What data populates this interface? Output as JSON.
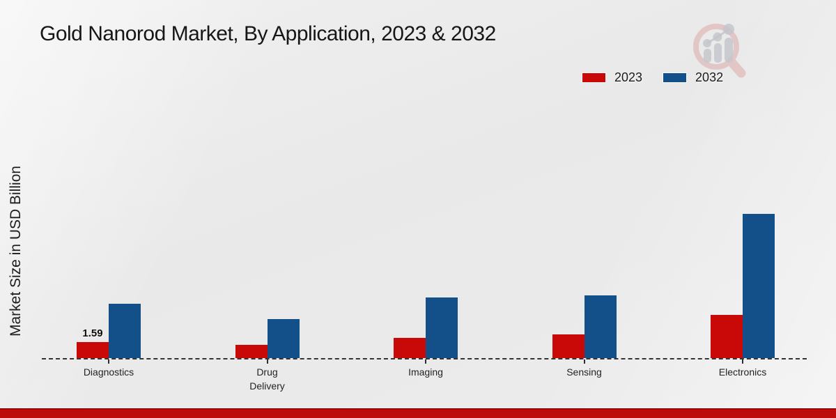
{
  "title": "Gold Nanorod Market, By Application, 2023 & 2032",
  "ylabel": "Market Size in USD Billion",
  "legend": {
    "items": [
      {
        "label": "2023",
        "color": "#c90808"
      },
      {
        "label": "2032",
        "color": "#134f88"
      }
    ]
  },
  "chart_data": {
    "type": "bar",
    "title": "Gold Nanorod Market, By Application, 2023 & 2032",
    "ylabel": "Market Size in USD Billion",
    "categories": [
      "Diagnostics",
      "Drug Delivery",
      "Imaging",
      "Sensing",
      "Electronics"
    ],
    "series": [
      {
        "name": "2023",
        "color": "#c90808",
        "values": [
          1.59,
          1.3,
          2.0,
          2.3,
          4.2
        ]
      },
      {
        "name": "2032",
        "color": "#134f88",
        "values": [
          5.3,
          3.8,
          5.9,
          6.1,
          14.1
        ]
      }
    ],
    "data_labels": [
      {
        "category_index": 0,
        "series_index": 0,
        "text": "1.59"
      }
    ],
    "ylim": [
      0,
      15
    ],
    "grid": false,
    "axis_line": "dashed-baseline",
    "legend_position": "top-right"
  },
  "branding": {
    "logo": "magnifier-bar-chart-watermark",
    "accent_strip_color": "#bd0b0b"
  }
}
